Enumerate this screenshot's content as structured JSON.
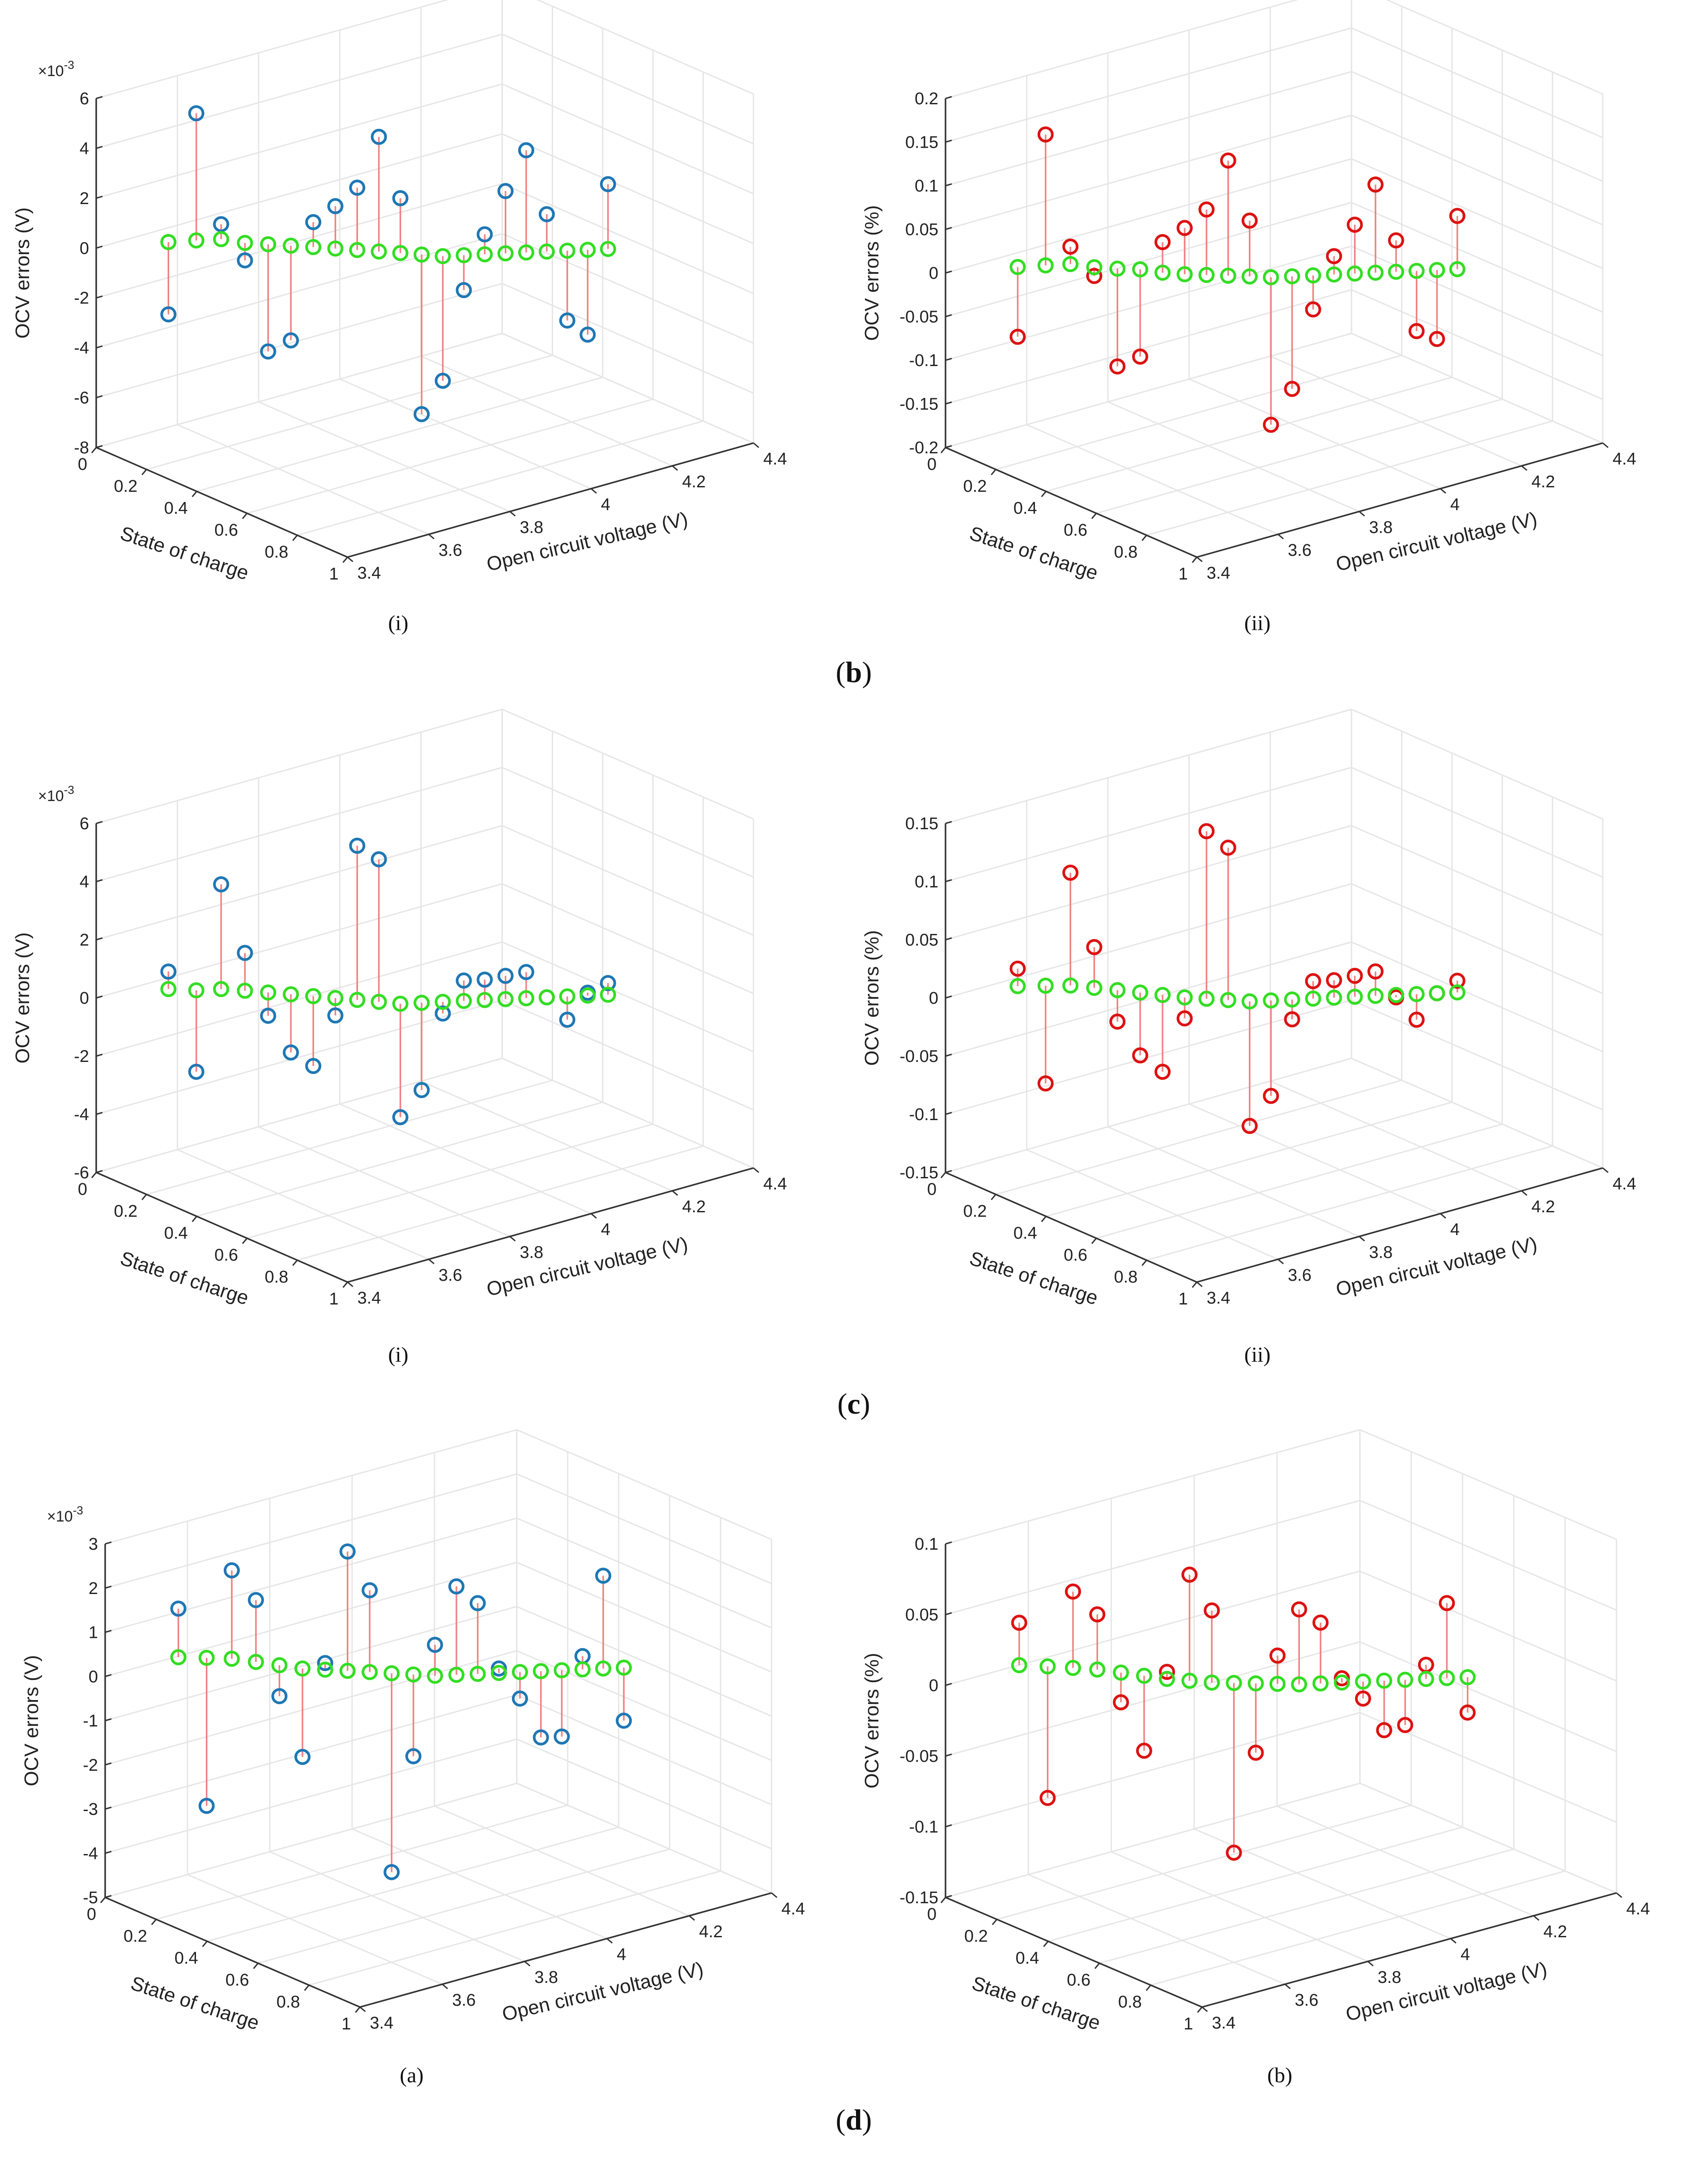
{
  "rows": [
    {
      "letter": "b",
      "panels": [
        {
          "caption": "(i)"
        },
        {
          "caption": "(ii)"
        }
      ]
    },
    {
      "letter": "c",
      "panels": [
        {
          "caption": "(i)"
        },
        {
          "caption": "(ii)"
        }
      ]
    },
    {
      "letter": "d",
      "panels": [
        {
          "caption": "(a)"
        },
        {
          "caption": "(b)"
        }
      ]
    }
  ],
  "colors": {
    "reference": "#33dd22",
    "abs_error": "#1f77b4",
    "pct_error": "#dd1111",
    "stem": "#f08080"
  },
  "chart_data": [
    {
      "id": "b-i",
      "type": "stem3d",
      "title": "",
      "xlabel": "State of charge",
      "ylabel": "Open circuit voltage (V)",
      "zlabel": "OCV errors (V)",
      "zexponent": "×10",
      "zexponent_power": "-3",
      "xticks": [
        "0",
        "0.2",
        "0.4",
        "0.6",
        "0.8",
        "1"
      ],
      "yticks": [
        "3.4",
        "3.6",
        "3.8",
        "4",
        "4.2",
        "4.4"
      ],
      "zticks": [
        "6",
        "4",
        "2",
        "0",
        "-2",
        "-4",
        "-6",
        "-8"
      ],
      "zlim": [
        -8,
        6
      ],
      "series": [
        {
          "name": "reference",
          "color": "#33dd22",
          "values": [
            0,
            0,
            0,
            -0.2,
            -0.3,
            -0.4,
            -0.5,
            -0.6,
            -0.7,
            -0.8,
            -0.9,
            -1.0,
            -1.1,
            -1.1,
            -1.1,
            -1.1,
            -1.1,
            -1.1,
            -1.1,
            -1.1,
            -1.1
          ]
        },
        {
          "name": "OCV error",
          "color": "#1f77b4",
          "values": [
            -2.9,
            5.1,
            0.6,
            -0.9,
            -4.6,
            -4.2,
            0.5,
            1.1,
            1.8,
            3.8,
            1.3,
            -7.4,
            -6.1,
            -2.5,
            -0.3,
            1.4,
            3.0,
            0.4,
            -3.9,
            -4.5,
            1.5
          ]
        }
      ]
    },
    {
      "id": "b-ii",
      "type": "stem3d",
      "title": "",
      "xlabel": "State of charge",
      "ylabel": "Open circuit voltage (V)",
      "zlabel": "OCV errors (%)",
      "zexponent": "",
      "zexponent_power": "",
      "xticks": [
        "0",
        "0.2",
        "0.4",
        "0.6",
        "0.8",
        "1"
      ],
      "yticks": [
        "3.4",
        "3.6",
        "3.8",
        "4",
        "4.2",
        "4.4"
      ],
      "zticks": [
        "0.2",
        "0.15",
        "0.1",
        "0.05",
        "0",
        "-0.05",
        "-0.1",
        "-0.15",
        "-0.2"
      ],
      "zlim": [
        -0.2,
        0.2
      ],
      "series": [
        {
          "name": "reference",
          "color": "#33dd22",
          "values": [
            0,
            0,
            0,
            -0.005,
            -0.008,
            -0.01,
            -0.015,
            -0.018,
            -0.02,
            -0.022,
            -0.024,
            -0.026,
            -0.026,
            -0.026,
            -0.026,
            -0.026,
            -0.026,
            -0.026,
            -0.026,
            -0.026,
            -0.026
          ]
        },
        {
          "name": "OCV error",
          "color": "#dd1111",
          "values": [
            -0.08,
            0.15,
            0.02,
            -0.015,
            -0.12,
            -0.11,
            0.02,
            0.035,
            0.055,
            0.11,
            0.04,
            -0.195,
            -0.155,
            -0.065,
            -0.005,
            0.03,
            0.075,
            0.01,
            -0.095,
            -0.105,
            0.035
          ]
        }
      ]
    },
    {
      "id": "c-i",
      "type": "stem3d",
      "title": "",
      "xlabel": "State of charge",
      "ylabel": "Open circuit voltage (V)",
      "zlabel": "OCV errors (V)",
      "zexponent": "×10",
      "zexponent_power": "-3",
      "xticks": [
        "0",
        "0.2",
        "0.4",
        "0.6",
        "0.8",
        "1"
      ],
      "yticks": [
        "3.4",
        "3.6",
        "3.8",
        "4",
        "4.2",
        "4.4"
      ],
      "zticks": [
        "6",
        "4",
        "2",
        "0",
        "-2",
        "-4",
        "-6"
      ],
      "zlim": [
        -6,
        6
      ],
      "series": [
        {
          "name": "reference",
          "color": "#33dd22",
          "values": [
            0.1,
            0,
            0,
            -0.1,
            -0.2,
            -0.3,
            -0.4,
            -0.5,
            -0.6,
            -0.7,
            -0.8,
            -0.8,
            -0.8,
            -0.8,
            -0.8,
            -0.8,
            -0.8,
            -0.8,
            -0.8,
            -0.8,
            -0.8
          ]
        },
        {
          "name": "OCV error",
          "color": "#1f77b4",
          "values": [
            0.7,
            -2.8,
            3.6,
            1.2,
            -1.0,
            -2.3,
            -2.8,
            -1.1,
            4.7,
            4.2,
            -4.7,
            -3.8,
            -1.2,
            -0.1,
            -0.1,
            0,
            0.1,
            -0.8,
            -1.6,
            -0.7,
            -0.4
          ]
        }
      ]
    },
    {
      "id": "c-ii",
      "type": "stem3d",
      "title": "",
      "xlabel": "State of charge",
      "ylabel": "Open circuit voltage (V)",
      "zlabel": "OCV errors (%)",
      "zexponent": "",
      "zexponent_power": "",
      "xticks": [
        "0",
        "0.2",
        "0.4",
        "0.6",
        "0.8",
        "1"
      ],
      "yticks": [
        "3.4",
        "3.6",
        "3.8",
        "4",
        "4.2",
        "4.4"
      ],
      "zticks": [
        "0.15",
        "0.1",
        "0.05",
        "0",
        "-0.05",
        "-0.1",
        "-0.15"
      ],
      "zlim": [
        -0.15,
        0.15
      ],
      "series": [
        {
          "name": "reference",
          "color": "#33dd22",
          "values": [
            0.005,
            0.004,
            0.003,
            0,
            -0.003,
            -0.006,
            -0.009,
            -0.012,
            -0.014,
            -0.016,
            -0.018,
            -0.018,
            -0.018,
            -0.018,
            -0.018,
            -0.018,
            -0.018,
            -0.018,
            -0.018,
            -0.018,
            -0.018
          ]
        },
        {
          "name": "OCV error",
          "color": "#dd1111",
          "values": [
            0.02,
            -0.08,
            0.1,
            0.035,
            -0.03,
            -0.06,
            -0.075,
            -0.03,
            0.13,
            0.115,
            -0.125,
            -0.1,
            -0.035,
            -0.003,
            -0.003,
            0,
            0.003,
            -0.02,
            -0.04,
            -0.018,
            -0.008
          ]
        }
      ]
    },
    {
      "id": "d-a",
      "type": "stem3d",
      "title": "",
      "xlabel": "State of charge",
      "ylabel": "Open circuit voltage (V)",
      "zlabel": "OCV errors (V)",
      "zexponent": "×10",
      "zexponent_power": "-3",
      "xticks": [
        "0",
        "0.2",
        "0.4",
        "0.6",
        "0.8",
        "1"
      ],
      "yticks": [
        "3.4",
        "3.6",
        "3.8",
        "4",
        "4.2",
        "4.4"
      ],
      "zticks": [
        "3",
        "2",
        "1",
        "0",
        "-1",
        "-2",
        "-3",
        "-4",
        "-5"
      ],
      "zlim": [
        -5,
        3
      ],
      "series": [
        {
          "name": "reference",
          "color": "#33dd22",
          "values": [
            0.3,
            0.25,
            0.2,
            0.1,
            0,
            -0.1,
            -0.15,
            -0.2,
            -0.25,
            -0.3,
            -0.35,
            -0.4,
            -0.4,
            -0.4,
            -0.4,
            -0.4,
            -0.4,
            -0.4,
            -0.4,
            -0.4,
            -0.4
          ]
        },
        {
          "name": "OCV error",
          "color": "#1f77b4",
          "values": [
            1.4,
            -3.1,
            2.2,
            1.5,
            -0.7,
            -2.1,
            0,
            2.5,
            1.6,
            -4.8,
            -2.2,
            0.3,
            1.6,
            1.2,
            -0.3,
            -1.0,
            -1.9,
            -1.9,
            -0.1,
            1.7,
            -1.6
          ]
        }
      ]
    },
    {
      "id": "d-b",
      "type": "stem3d",
      "title": "",
      "xlabel": "State of charge",
      "ylabel": "Open circuit voltage (V)",
      "zlabel": "OCV errors (%)",
      "zexponent": "",
      "zexponent_power": "",
      "xticks": [
        "0",
        "0.2",
        "0.4",
        "0.6",
        "0.8",
        "1"
      ],
      "yticks": [
        "3.4",
        "3.6",
        "3.8",
        "4",
        "4.2",
        "4.4"
      ],
      "zticks": [
        "0.1",
        "0.05",
        "0",
        "-0.05",
        "-0.1",
        "-0.15"
      ],
      "zlim": [
        -0.15,
        0.1
      ],
      "series": [
        {
          "name": "reference",
          "color": "#33dd22",
          "values": [
            0.01,
            0.008,
            0.006,
            0.004,
            0.001,
            -0.002,
            -0.005,
            -0.007,
            -0.009,
            -0.01,
            -0.011,
            -0.012,
            -0.013,
            -0.013,
            -0.013,
            -0.013,
            -0.013,
            -0.013,
            -0.013,
            -0.013,
            -0.013
          ]
        },
        {
          "name": "OCV error",
          "color": "#dd1111",
          "values": [
            0.04,
            -0.085,
            0.06,
            0.043,
            -0.02,
            -0.055,
            0,
            0.068,
            0.042,
            -0.13,
            -0.06,
            0.008,
            0.04,
            0.03,
            -0.01,
            -0.025,
            -0.048,
            -0.045,
            -0.003,
            0.04,
            -0.038
          ]
        }
      ]
    }
  ]
}
